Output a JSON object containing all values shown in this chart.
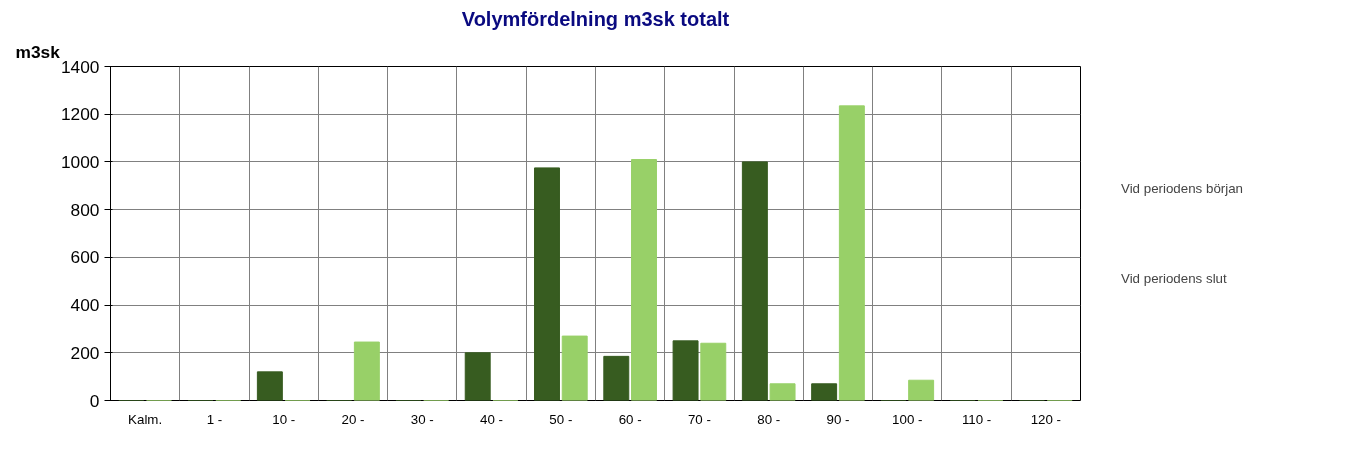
{
  "chart_data": {
    "type": "bar",
    "title": "Volymfördelning m3sk totalt",
    "ylabel": "m3sk",
    "categories": [
      "Kalm.",
      "1 -",
      "10 -",
      "20 -",
      "30 -",
      "40 -",
      "50 -",
      "60 -",
      "70 -",
      "80 -",
      "90 -",
      "100 -",
      "110 -",
      "120 -"
    ],
    "series": [
      {
        "name": "Vid periodens början",
        "color": "#375c20",
        "values": [
          0,
          0,
          120,
          0,
          0,
          200,
          975,
          185,
          250,
          1000,
          70,
          0,
          0,
          0
        ]
      },
      {
        "name": "Vid periodens slut",
        "color": "#98d068",
        "values": [
          0,
          0,
          0,
          245,
          0,
          0,
          270,
          1010,
          240,
          70,
          1235,
          85,
          0,
          0
        ]
      }
    ],
    "ylim": [
      0,
      1400
    ],
    "yticks": [
      0,
      200,
      400,
      600,
      800,
      1000,
      1200,
      1400
    ],
    "grid": true,
    "legend": "right"
  }
}
